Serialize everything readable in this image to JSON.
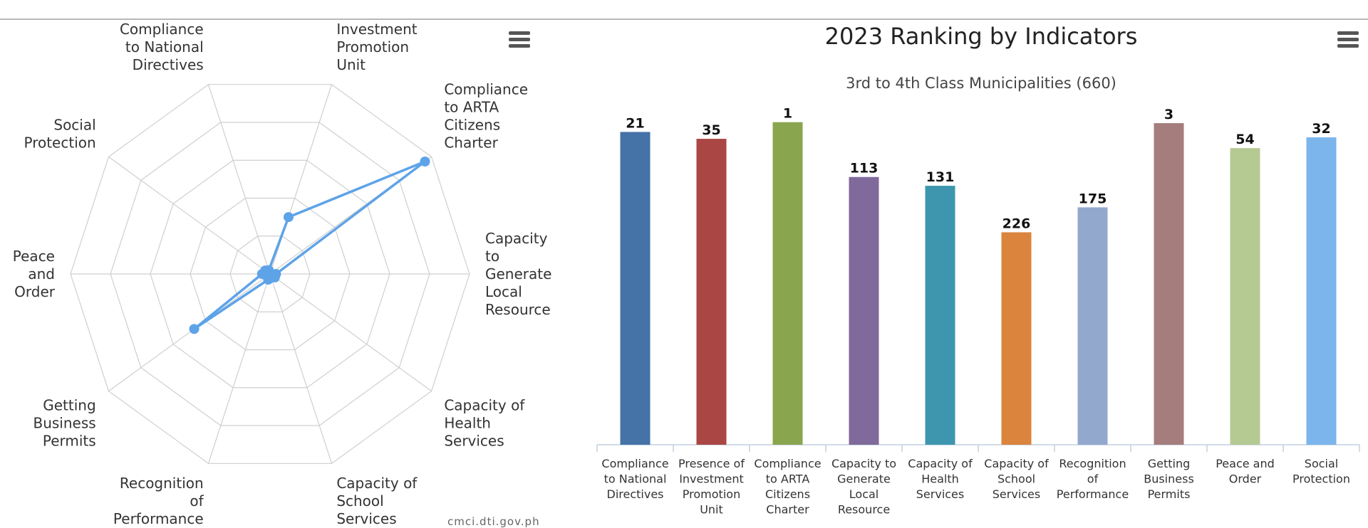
{
  "menu_icon": "hamburger-menu-icon",
  "credit": "cmci.dti.gov.ph",
  "chart_data": [
    {
      "type": "radar",
      "axes": [
        [
          "Presence of",
          "Investment",
          "Promotion",
          "Unit"
        ],
        [
          "Compliance",
          "to ARTA",
          "Citizens",
          "Charter"
        ],
        [
          "Capacity",
          "to",
          "Generate",
          "Local",
          "Resource"
        ],
        [
          "Capacity of",
          "Health",
          "Services"
        ],
        [
          "Capacity of",
          "School",
          "Services"
        ],
        [
          "Recognition",
          "of",
          "Performance"
        ],
        [
          "Getting",
          "Business",
          "Permits"
        ],
        [
          "Peace",
          "and",
          "Order"
        ],
        [
          "Social",
          "Protection"
        ],
        [
          "Compliance",
          "to National",
          "Directives"
        ]
      ],
      "values": [
        0.3,
        0.96,
        0.03,
        0.03,
        0.02,
        0.03,
        0.47,
        0.04,
        0.03,
        0.02
      ],
      "range": [
        0,
        1
      ],
      "rings": 5,
      "color": "#5ea3e8"
    },
    {
      "type": "bar",
      "title": "2023 Ranking by Indicators",
      "subtitle": "3rd to 4th Class Municipalities (660)",
      "categories": [
        [
          "Compliance",
          "to National",
          "Directives"
        ],
        [
          "Presence of",
          "Investment",
          "Promotion",
          "Unit"
        ],
        [
          "Compliance",
          "to ARTA",
          "Citizens",
          "Charter"
        ],
        [
          "Capacity to",
          "Generate",
          "Local",
          "Resource"
        ],
        [
          "Capacity of",
          "Health",
          "Services"
        ],
        [
          "Capacity of",
          "School",
          "Services"
        ],
        [
          "Recognition",
          "of",
          "Performance"
        ],
        [
          "Getting",
          "Business",
          "Permits"
        ],
        [
          "Peace and",
          "Order"
        ],
        [
          "Social",
          "Protection"
        ]
      ],
      "values": [
        21,
        35,
        1,
        113,
        131,
        226,
        175,
        3,
        54,
        32
      ],
      "data_labels": [
        "21",
        "35",
        "1",
        "113",
        "131",
        "226",
        "175",
        "3",
        "54",
        "32"
      ],
      "colors": [
        "#4572a7",
        "#aa4643",
        "#89a54e",
        "#80699b",
        "#3d96ae",
        "#db843d",
        "#92a8cd",
        "#a47d7c",
        "#b5ca92",
        "#7cb5ec"
      ],
      "ylim": [
        660,
        0
      ],
      "yaxis": "reversed",
      "grid": false,
      "legend": "none"
    }
  ]
}
